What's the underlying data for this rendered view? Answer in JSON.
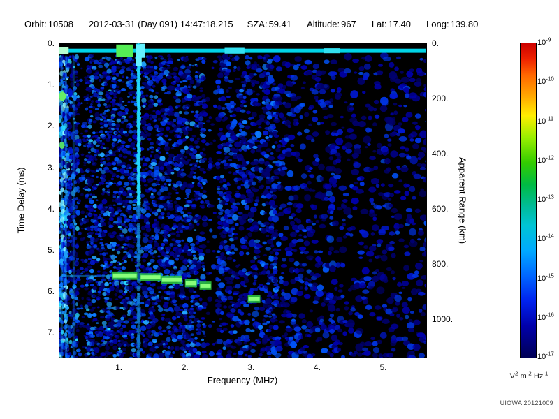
{
  "header": {
    "orbit_label": "Orbit:",
    "orbit": "10508",
    "datetime": "2012-03-31 (Day 091) 14:47:18.215",
    "sza_label": "SZA:",
    "sza": "59.41",
    "altitude_label": "Altitude:",
    "altitude": "967",
    "lat_label": "Lat:",
    "lat": "17.40",
    "long_label": "Long:",
    "long": "139.80"
  },
  "footer": {
    "credit": "UIOWA 20121009"
  },
  "chart_data": {
    "type": "heatmap",
    "description": "Radar sounder ionogram spectrogram: signal spectral density vs frequency and time delay",
    "x_axis": {
      "label": "Frequency (MHz)",
      "range": [
        0.1,
        5.65
      ],
      "ticks": [
        {
          "value": 1,
          "label": "1."
        },
        {
          "value": 2,
          "label": "2."
        },
        {
          "value": 3,
          "label": "3."
        },
        {
          "value": 4,
          "label": "4."
        },
        {
          "value": 5,
          "label": "5."
        }
      ]
    },
    "y_axis": {
      "label": "Time Delay (ms)",
      "range": [
        0,
        7.6
      ],
      "ticks": [
        {
          "value": 0,
          "label": "0."
        },
        {
          "value": 1,
          "label": "1."
        },
        {
          "value": 2,
          "label": "2."
        },
        {
          "value": 3,
          "label": "3."
        },
        {
          "value": 4,
          "label": "4."
        },
        {
          "value": 5,
          "label": "5."
        },
        {
          "value": 6,
          "label": "6."
        },
        {
          "value": 7,
          "label": "7."
        }
      ]
    },
    "y2_axis": {
      "label": "Apparent Range (km)",
      "km_per_ms": 150,
      "ticks": [
        {
          "value_km": 0,
          "label": "0."
        },
        {
          "value_km": 200,
          "label": "200."
        },
        {
          "value_km": 400,
          "label": "400."
        },
        {
          "value_km": 600,
          "label": "600."
        },
        {
          "value_km": 800,
          "label": "800."
        },
        {
          "value_km": 1000,
          "label": "1000."
        }
      ]
    },
    "colorbar": {
      "scale": "log",
      "mantissa": "10",
      "exponents": [
        "-9",
        "-10",
        "-11",
        "-12",
        "-13",
        "-14",
        "-15",
        "-16",
        "-17"
      ],
      "unit_parts": [
        {
          "base": "V",
          "exp": "2"
        },
        {
          "base": "m",
          "exp": "-2"
        },
        {
          "base": "Hz",
          "exp": "-1"
        }
      ],
      "gradient_stops": [
        {
          "pos": 0.0,
          "color": "#cc0000"
        },
        {
          "pos": 0.05,
          "color": "#ee2200"
        },
        {
          "pos": 0.1,
          "color": "#ff6600"
        },
        {
          "pos": 0.17,
          "color": "#ffaa00"
        },
        {
          "pos": 0.23,
          "color": "#ffee00"
        },
        {
          "pos": 0.3,
          "color": "#99ee00"
        },
        {
          "pos": 0.38,
          "color": "#33cc00"
        },
        {
          "pos": 0.45,
          "color": "#00bb44"
        },
        {
          "pos": 0.52,
          "color": "#00bb99"
        },
        {
          "pos": 0.58,
          "color": "#00c4d4"
        },
        {
          "pos": 0.66,
          "color": "#00aaff"
        },
        {
          "pos": 0.74,
          "color": "#0066ff"
        },
        {
          "pos": 0.82,
          "color": "#0022ee"
        },
        {
          "pos": 0.9,
          "color": "#0000aa"
        },
        {
          "pos": 1.0,
          "color": "#000055"
        }
      ]
    },
    "background_color": "#000000",
    "noise_palette": [
      "#000070",
      "#0000a8",
      "#0018d0",
      "#0034e4",
      "#0052f4",
      "#0d7bff",
      "#22a6ff",
      "#27d9ff",
      "#8cf2ff"
    ],
    "noise_bands": [
      {
        "f": [
          0.1,
          0.22
        ],
        "density": 0.9,
        "brightness": 1.0,
        "size": [
          1.5,
          3.5
        ],
        "gamma": 0.9,
        "stretch_y": 1.6
      },
      {
        "f": [
          0.22,
          0.37
        ],
        "density": 0.6,
        "brightness": 0.85,
        "size": [
          1.5,
          3.5
        ],
        "stretch_y": 1.4
      },
      {
        "f": [
          0.37,
          0.5
        ],
        "density": 0.22,
        "brightness": 0.6,
        "size": [
          1.5,
          3.5
        ]
      },
      {
        "f": [
          0.5,
          1.28
        ],
        "density": 0.5,
        "brightness": 0.8,
        "size": [
          1.8,
          4.0
        ]
      },
      {
        "f": [
          1.33,
          2.28
        ],
        "density": 0.42,
        "brightness": 0.72,
        "size": [
          1.8,
          4.5
        ]
      },
      {
        "f": [
          2.28,
          2.5
        ],
        "density": 0.12,
        "brightness": 0.55,
        "size": [
          1.8,
          4.0
        ]
      },
      {
        "f": [
          2.5,
          3.35
        ],
        "density": 0.33,
        "brightness": 0.62,
        "size": [
          2.2,
          5.0
        ]
      },
      {
        "f": [
          3.35,
          4.2
        ],
        "density": 0.18,
        "brightness": 0.52,
        "size": [
          2.5,
          5.5
        ]
      },
      {
        "f": [
          4.2,
          5.65
        ],
        "density": 0.13,
        "brightness": 0.46,
        "size": [
          2.5,
          6.0
        ]
      }
    ],
    "features": {
      "dense_columns": [
        {
          "f": 0.135,
          "color": "#22b4ff"
        },
        {
          "f": 0.2,
          "color": "#1e9cf0"
        },
        {
          "f": 0.315,
          "color": "#1580e0"
        }
      ],
      "transmit_band": {
        "delay_ms": 0.18,
        "thickness_ms": 0.1,
        "f_range": [
          0.1,
          5.65
        ],
        "color": "#00d4e8",
        "bright_segments": [
          {
            "f": [
              0.1,
              0.24
            ],
            "color": "#b8ffd0",
            "thickness_ms": 0.16
          },
          {
            "f": [
              0.96,
              1.22
            ],
            "color": "#55ee55",
            "thickness_ms": 0.3
          },
          {
            "f": [
              1.26,
              1.4
            ],
            "color": "#66f0ff",
            "thickness_ms": 0.34
          },
          {
            "f": [
              2.6,
              2.9
            ],
            "color": "#33e0f0",
            "thickness_ms": 0.14
          },
          {
            "f": [
              4.1,
              4.35
            ],
            "color": "#33e0f0",
            "thickness_ms": 0.12
          }
        ]
      },
      "plasma_line": {
        "f_mhz": 1.3,
        "width_mhz": 0.05,
        "delay_range": [
          0.05,
          7.6
        ],
        "bright_until_ms": 3.9,
        "color_bright": "#22d8ff",
        "color_faint": "#0f7fd8",
        "top_blob": {
          "delay": [
            0.05,
            0.55
          ],
          "width_mhz": 0.09,
          "color": "#66f2ff"
        }
      },
      "cyclotron_echoes": [
        {
          "f": 0.145,
          "delay": 1.28,
          "w": 0.11,
          "h": 0.22,
          "color": "#66ee66"
        },
        {
          "f": 0.14,
          "delay": 2.47,
          "w": 0.08,
          "h": 0.16,
          "color": "#55dd66"
        }
      ],
      "pre_trace_line": {
        "f": [
          0.12,
          0.92
        ],
        "delay": 5.63,
        "color": "#1090e0"
      },
      "ionosphere_trace": {
        "thickness_ms": 0.11,
        "color": "#2ecc44",
        "core": "#8aff7a",
        "segments": [
          {
            "f": [
              0.9,
              1.28
            ],
            "delay": 5.62
          },
          {
            "f": [
              1.32,
              1.64
            ],
            "delay": 5.66
          },
          {
            "f": [
              1.64,
              1.96
            ],
            "delay": 5.72
          },
          {
            "f": [
              2.0,
              2.18
            ],
            "delay": 5.8
          },
          {
            "f": [
              2.22,
              2.4
            ],
            "delay": 5.86
          },
          {
            "f": [
              2.95,
              3.14
            ],
            "delay": 6.18
          }
        ]
      }
    }
  }
}
